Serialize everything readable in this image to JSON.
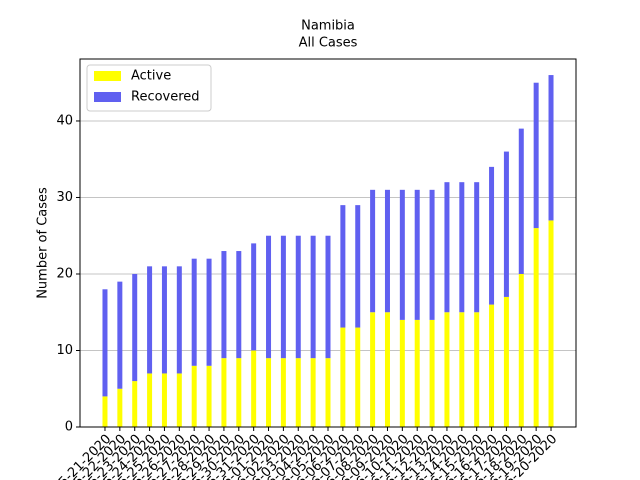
{
  "chart_data": {
    "type": "stacked_bar",
    "title": "Namibia",
    "subtitle": "All Cases",
    "ylabel": "Number of Cases",
    "categories": [
      "05-21-2020",
      "05-22-2020",
      "05-23-2020",
      "05-24-2020",
      "05-25-2020",
      "05-26-2020",
      "05-27-2020",
      "05-28-2020",
      "05-29-2020",
      "05-30-2020",
      "05-31-2020",
      "06-01-2020",
      "06-02-2020",
      "06-03-2020",
      "06-04-2020",
      "06-05-2020",
      "06-06-2020",
      "06-07-2020",
      "06-08-2020",
      "06-09-2020",
      "06-10-2020",
      "06-11-2020",
      "06-12-2020",
      "06-13-2020",
      "06-14-2020",
      "06-15-2020",
      "06-16-2020",
      "06-17-2020",
      "06-18-2020",
      "06-19-2020",
      "06-20-2020"
    ],
    "series": [
      {
        "name": "Active",
        "color": "#ffff00",
        "values": [
          4,
          5,
          6,
          7,
          7,
          7,
          8,
          8,
          9,
          9,
          10,
          9,
          9,
          9,
          9,
          9,
          13,
          13,
          15,
          15,
          14,
          14,
          14,
          15,
          15,
          15,
          16,
          17,
          20,
          26,
          27
        ]
      },
      {
        "name": "Recovered",
        "color": "#6060f0",
        "values": [
          14,
          14,
          14,
          14,
          14,
          14,
          14,
          14,
          14,
          14,
          14,
          16,
          16,
          16,
          16,
          16,
          16,
          16,
          16,
          16,
          17,
          17,
          17,
          17,
          17,
          17,
          18,
          19,
          19,
          19,
          19
        ]
      }
    ],
    "ylim": [
      0,
      48.1
    ],
    "yticks": [
      0,
      10,
      20,
      30,
      40
    ],
    "grid": true,
    "legend": "upper left"
  }
}
